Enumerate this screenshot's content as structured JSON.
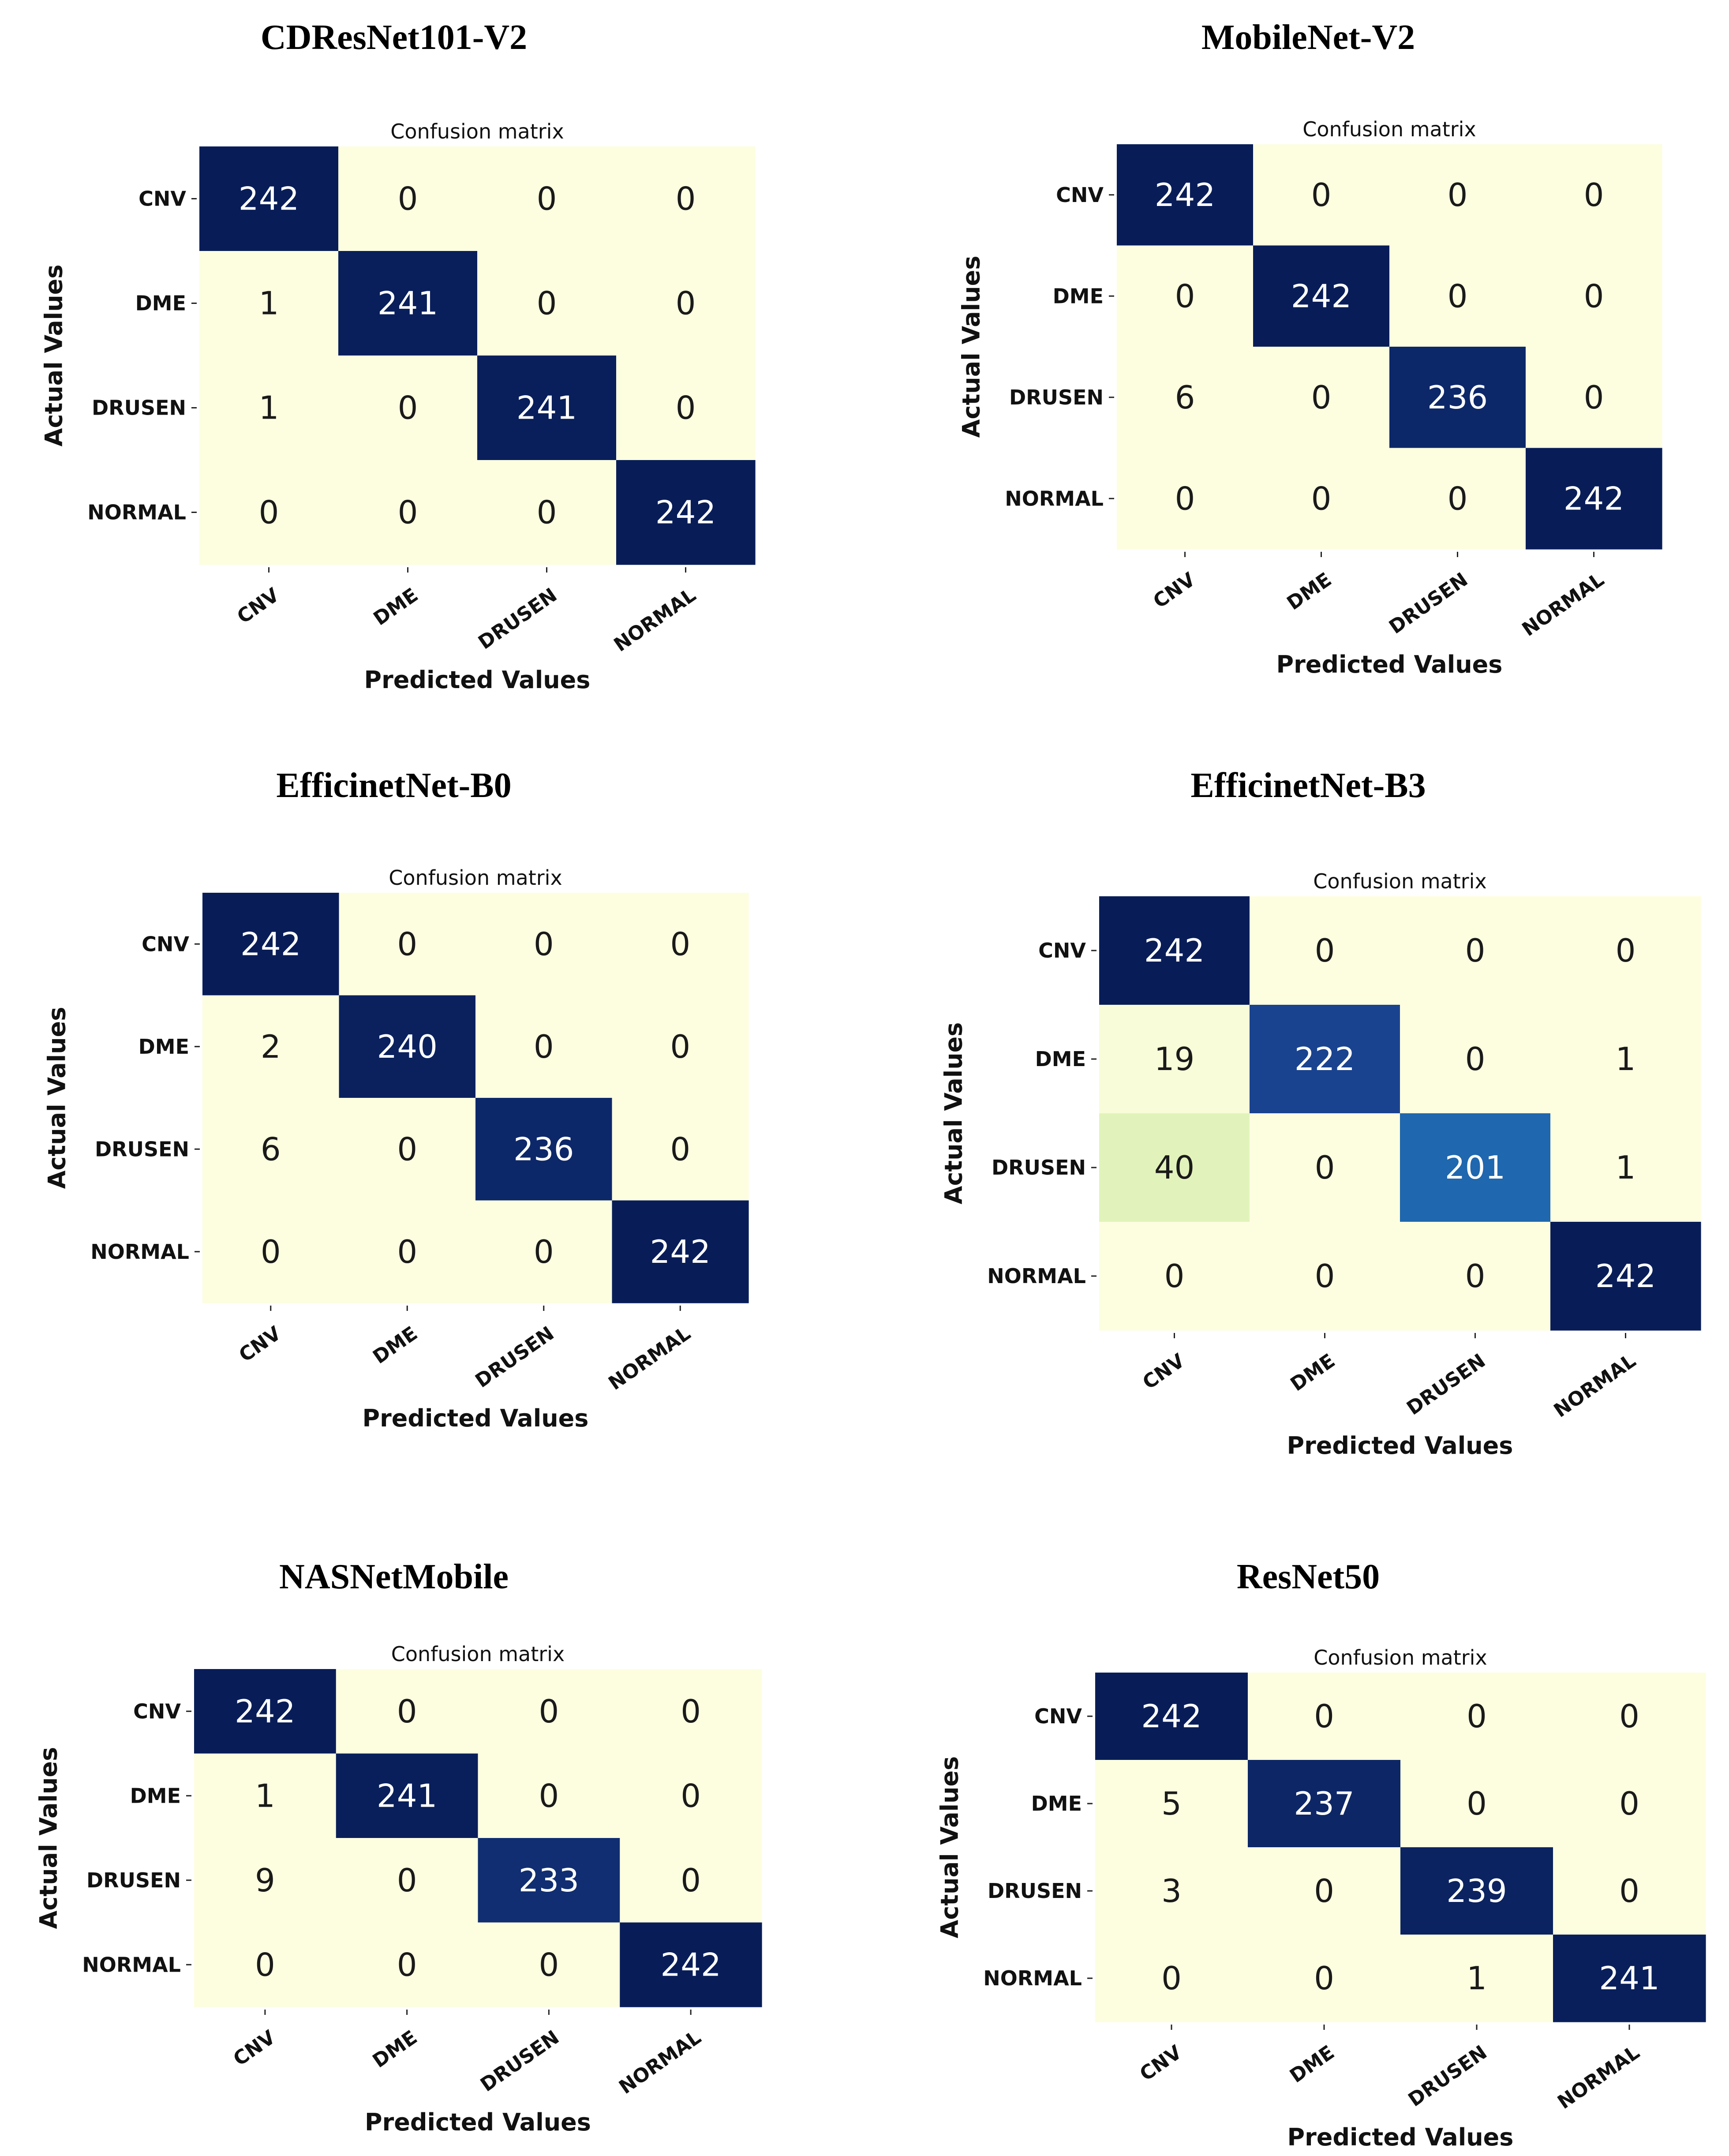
{
  "colors": {
    "low": "#fdfee0",
    "mid1": "#eef8c6",
    "mid2": "#d7f0b1",
    "mid3": "#1f73b6",
    "mid4": "#1e4b9b",
    "high": "#081d58",
    "text_dark": "#1a1a1a",
    "text_light": "#ffffff"
  },
  "chart_data": [
    {
      "type": "heatmap",
      "title": "CDResNet101-V2",
      "subtitle": "Confusion matrix",
      "xlabel": "Predicted Values",
      "ylabel": "Actual Values",
      "x_categories": [
        "CNV",
        "DME",
        "DRUSEN",
        "NORMAL"
      ],
      "y_categories": [
        "CNV",
        "DME",
        "DRUSEN",
        "NORMAL"
      ],
      "values": [
        [
          242,
          0,
          0,
          0
        ],
        [
          1,
          241,
          0,
          0
        ],
        [
          1,
          0,
          241,
          0
        ],
        [
          0,
          0,
          0,
          242
        ]
      ]
    },
    {
      "type": "heatmap",
      "title": "MobileNet-V2",
      "subtitle": "Confusion matrix",
      "xlabel": "Predicted Values",
      "ylabel": "Actual Values",
      "x_categories": [
        "CNV",
        "DME",
        "DRUSEN",
        "NORMAL"
      ],
      "y_categories": [
        "CNV",
        "DME",
        "DRUSEN",
        "NORMAL"
      ],
      "values": [
        [
          242,
          0,
          0,
          0
        ],
        [
          0,
          242,
          0,
          0
        ],
        [
          6,
          0,
          236,
          0
        ],
        [
          0,
          0,
          0,
          242
        ]
      ]
    },
    {
      "type": "heatmap",
      "title": "EfficinetNet-B0",
      "subtitle": "Confusion matrix",
      "xlabel": "Predicted Values",
      "ylabel": "Actual Values",
      "x_categories": [
        "CNV",
        "DME",
        "DRUSEN",
        "NORMAL"
      ],
      "y_categories": [
        "CNV",
        "DME",
        "DRUSEN",
        "NORMAL"
      ],
      "values": [
        [
          242,
          0,
          0,
          0
        ],
        [
          2,
          240,
          0,
          0
        ],
        [
          6,
          0,
          236,
          0
        ],
        [
          0,
          0,
          0,
          242
        ]
      ]
    },
    {
      "type": "heatmap",
      "title": "EfficinetNet-B3",
      "subtitle": "Confusion matrix",
      "xlabel": "Predicted Values",
      "ylabel": "Actual Values",
      "x_categories": [
        "CNV",
        "DME",
        "DRUSEN",
        "NORMAL"
      ],
      "y_categories": [
        "CNV",
        "DME",
        "DRUSEN",
        "NORMAL"
      ],
      "values": [
        [
          242,
          0,
          0,
          0
        ],
        [
          19,
          222,
          0,
          1
        ],
        [
          40,
          0,
          201,
          1
        ],
        [
          0,
          0,
          0,
          242
        ]
      ]
    },
    {
      "type": "heatmap",
      "title": "NASNetMobile",
      "subtitle": "Confusion matrix",
      "xlabel": "Predicted Values",
      "ylabel": "Actual Values",
      "x_categories": [
        "CNV",
        "DME",
        "DRUSEN",
        "NORMAL"
      ],
      "y_categories": [
        "CNV",
        "DME",
        "DRUSEN",
        "NORMAL"
      ],
      "values": [
        [
          242,
          0,
          0,
          0
        ],
        [
          1,
          241,
          0,
          0
        ],
        [
          9,
          0,
          233,
          0
        ],
        [
          0,
          0,
          0,
          242
        ]
      ]
    },
    {
      "type": "heatmap",
      "title": "ResNet50",
      "subtitle": "Confusion matrix",
      "xlabel": "Predicted Values",
      "ylabel": "Actual Values",
      "x_categories": [
        "CNV",
        "DME",
        "DRUSEN",
        "NORMAL"
      ],
      "y_categories": [
        "CNV",
        "DME",
        "DRUSEN",
        "NORMAL"
      ],
      "values": [
        [
          242,
          0,
          0,
          0
        ],
        [
          5,
          237,
          0,
          0
        ],
        [
          3,
          0,
          239,
          0
        ],
        [
          0,
          0,
          1,
          241
        ]
      ]
    }
  ]
}
